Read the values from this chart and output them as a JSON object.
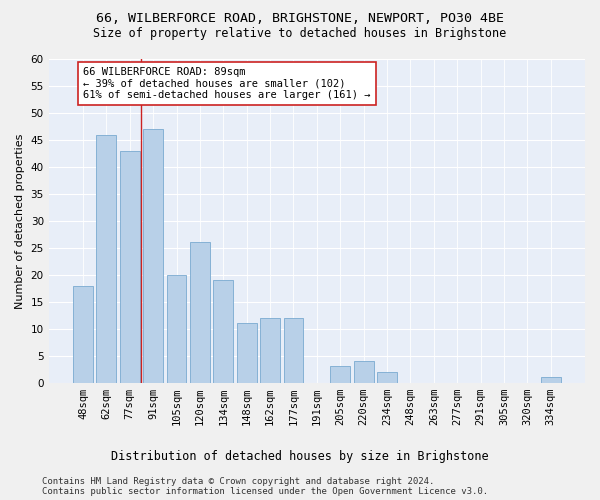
{
  "title1": "66, WILBERFORCE ROAD, BRIGHSTONE, NEWPORT, PO30 4BE",
  "title2": "Size of property relative to detached houses in Brighstone",
  "xlabel": "Distribution of detached houses by size in Brighstone",
  "ylabel": "Number of detached properties",
  "bar_labels": [
    "48sqm",
    "62sqm",
    "77sqm",
    "91sqm",
    "105sqm",
    "120sqm",
    "134sqm",
    "148sqm",
    "162sqm",
    "177sqm",
    "191sqm",
    "205sqm",
    "220sqm",
    "234sqm",
    "248sqm",
    "263sqm",
    "277sqm",
    "291sqm",
    "305sqm",
    "320sqm",
    "334sqm"
  ],
  "bar_values": [
    18,
    46,
    43,
    47,
    20,
    26,
    19,
    11,
    12,
    12,
    0,
    3,
    4,
    2,
    0,
    0,
    0,
    0,
    0,
    0,
    1
  ],
  "bar_color": "#b8d0e8",
  "bar_edgecolor": "#7aaad0",
  "vline_color": "#cc2222",
  "vline_x_index": 2,
  "annotation_text": "66 WILBERFORCE ROAD: 89sqm\n← 39% of detached houses are smaller (102)\n61% of semi-detached houses are larger (161) →",
  "annotation_box_facecolor": "#ffffff",
  "annotation_box_edgecolor": "#cc2222",
  "ylim": [
    0,
    60
  ],
  "yticks": [
    0,
    5,
    10,
    15,
    20,
    25,
    30,
    35,
    40,
    45,
    50,
    55,
    60
  ],
  "footer1": "Contains HM Land Registry data © Crown copyright and database right 2024.",
  "footer2": "Contains public sector information licensed under the Open Government Licence v3.0.",
  "bg_color": "#e8eef8",
  "fig_facecolor": "#f0f0f0",
  "grid_color": "#ffffff",
  "title1_fontsize": 9.5,
  "title2_fontsize": 8.5,
  "xlabel_fontsize": 8.5,
  "ylabel_fontsize": 8,
  "tick_fontsize": 7.5,
  "annotation_fontsize": 7.5,
  "footer_fontsize": 6.5
}
